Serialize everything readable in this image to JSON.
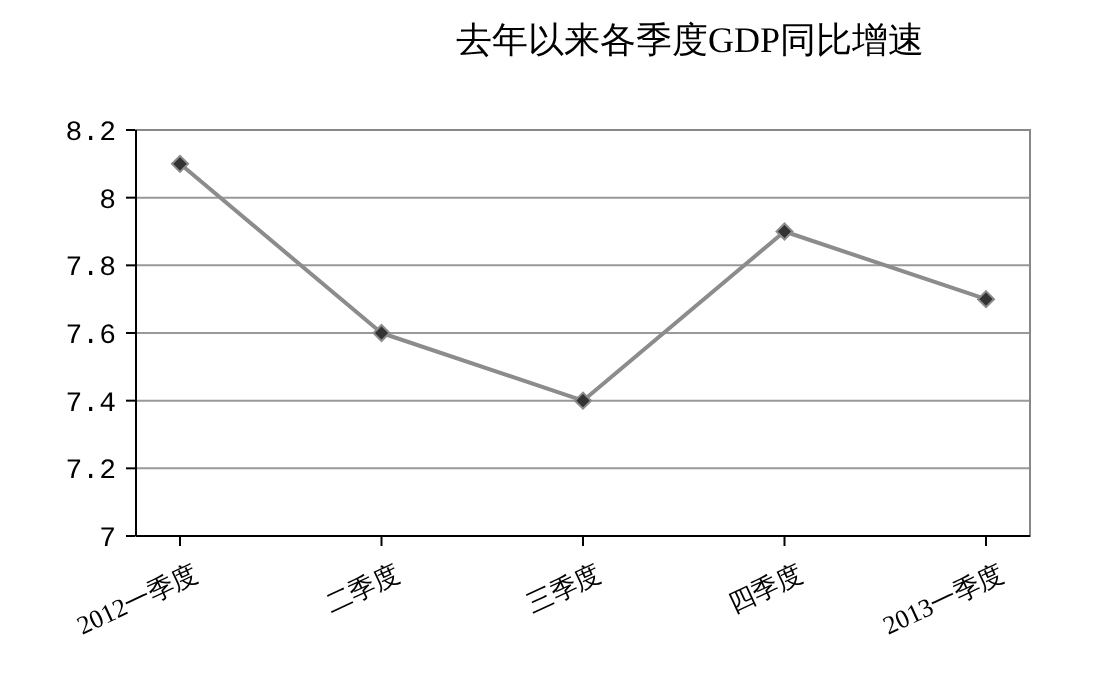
{
  "chart_data": {
    "type": "line",
    "title": "去年以来各季度GDP同比增速",
    "categories": [
      "2012一季度",
      "二季度",
      "三季度",
      "四季度",
      "2013一季度"
    ],
    "series": [
      {
        "color": "#8c8c8c",
        "values": [
          8.1,
          7.6,
          7.4,
          7.9,
          7.7
        ]
      }
    ],
    "ylim": [
      7,
      8.2
    ],
    "yticks": [
      7,
      7.2,
      7.4,
      7.6,
      7.8,
      8,
      8.2
    ],
    "grid": "y",
    "marker": "diamond",
    "line_style": "solid"
  }
}
